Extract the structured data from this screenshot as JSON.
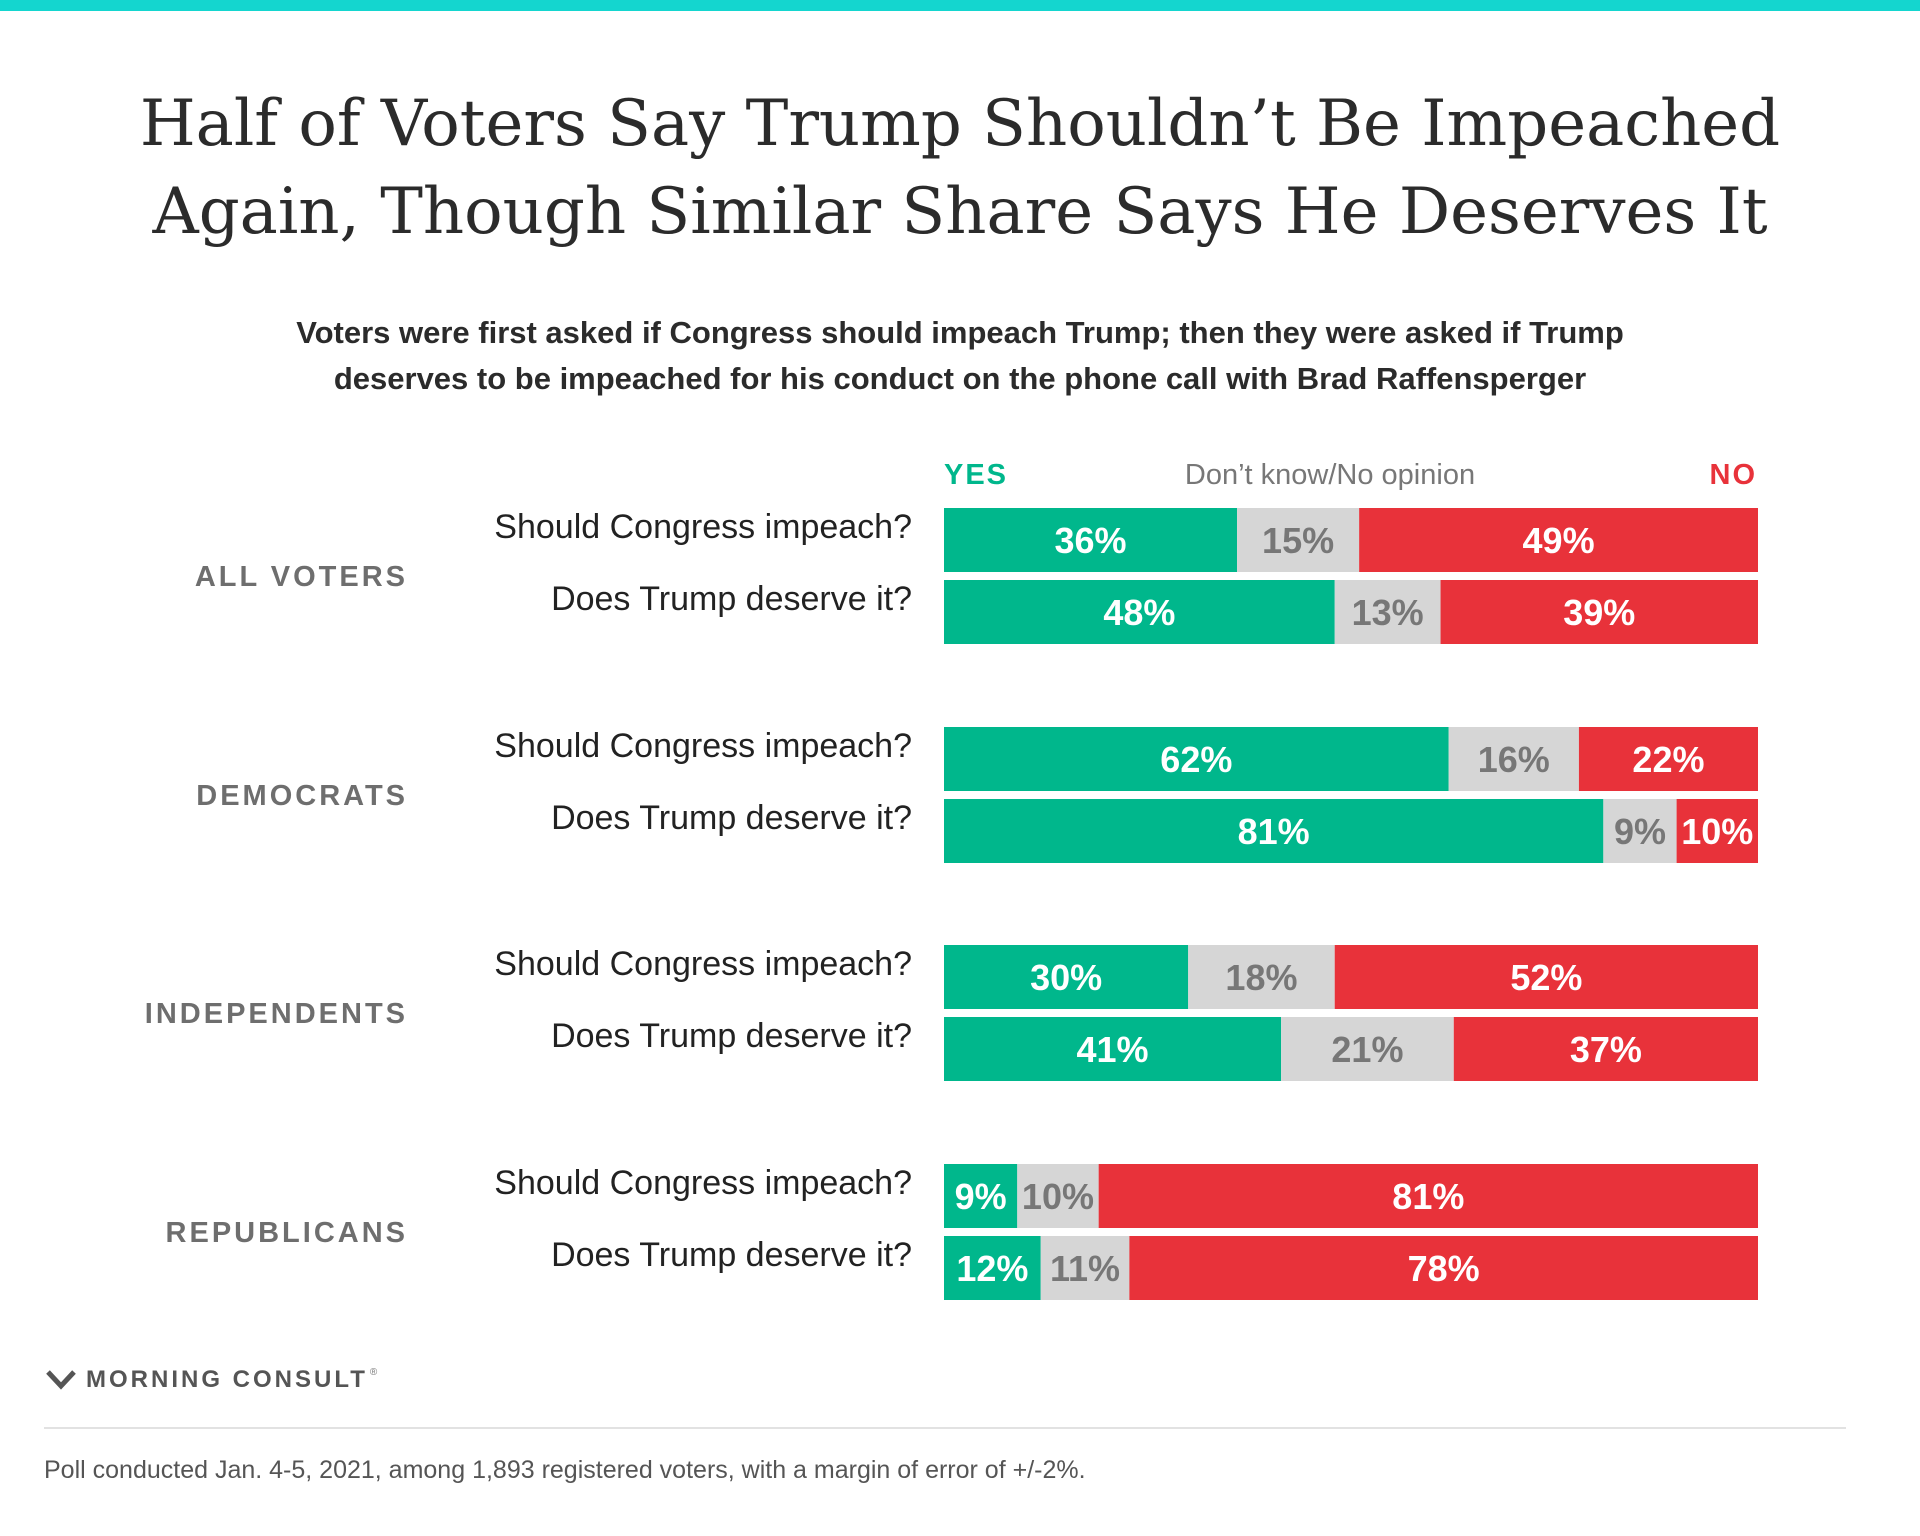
{
  "header": {
    "title_line1": "Half of Voters Say Trump Shouldn’t Be Impeached",
    "title_line2": "Again, Though Similar Share Says He Deserves It",
    "subtitle_line1": "Voters were first asked if Congress should impeach Trump; then they were asked if Trump",
    "subtitle_line2": "deserves to be impeached for his conduct on the phone call with Brad Raffensperger"
  },
  "colors": {
    "yes": "#00b78c",
    "dont_know": "#d6d6d6",
    "no": "#e8323a",
    "accent_bar": "#14d6cf"
  },
  "chart_data": {
    "type": "bar",
    "orientation": "horizontal",
    "stacked": true,
    "normalized": true,
    "legend": [
      {
        "key": "yes",
        "label": "YES"
      },
      {
        "key": "dont_know",
        "label": "Don’t know/No opinion"
      },
      {
        "key": "no",
        "label": "NO"
      }
    ],
    "groups": [
      {
        "name": "ALL VOTERS",
        "rows": [
          {
            "label": "Should Congress impeach?",
            "yes": 36,
            "dont_know": 15,
            "no": 49
          },
          {
            "label": "Does Trump deserve it?",
            "yes": 48,
            "dont_know": 13,
            "no": 39
          }
        ]
      },
      {
        "name": "DEMOCRATS",
        "rows": [
          {
            "label": "Should Congress impeach?",
            "yes": 62,
            "dont_know": 16,
            "no": 22
          },
          {
            "label": "Does Trump deserve it?",
            "yes": 81,
            "dont_know": 9,
            "no": 10
          }
        ]
      },
      {
        "name": "INDEPENDENTS",
        "rows": [
          {
            "label": "Should Congress impeach?",
            "yes": 30,
            "dont_know": 18,
            "no": 52
          },
          {
            "label": "Does Trump deserve it?",
            "yes": 41,
            "dont_know": 21,
            "no": 37
          }
        ]
      },
      {
        "name": "REPUBLICANS",
        "rows": [
          {
            "label": "Should Congress impeach?",
            "yes": 9,
            "dont_know": 10,
            "no": 81
          },
          {
            "label": "Does Trump deserve it?",
            "yes": 12,
            "dont_know": 11,
            "no": 78
          }
        ]
      }
    ],
    "value_suffix": "%"
  },
  "footer": {
    "brand": "MORNING CONSULT",
    "brand_mark": "®",
    "note": "Poll conducted Jan. 4-5, 2021, among 1,893 registered voters, with a margin of error of +/-2%."
  }
}
